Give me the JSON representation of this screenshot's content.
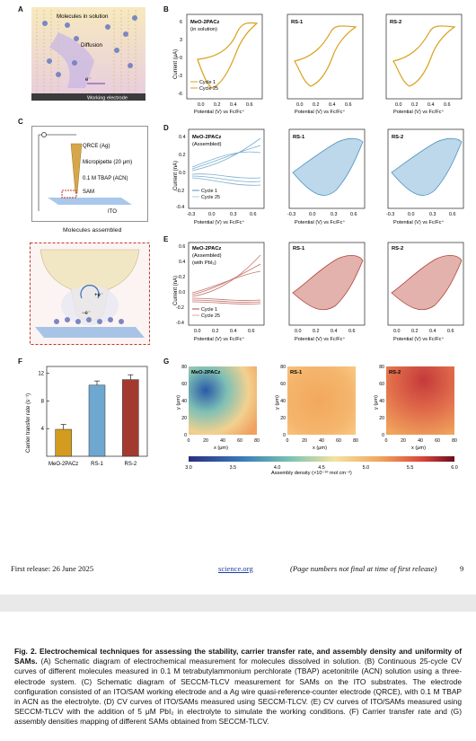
{
  "panels": {
    "A": {
      "label": "A",
      "molecules_text": "Molecules in solution",
      "diffusion_text": "Diffusion",
      "electron_text": "e⁻",
      "electrode_text": "Working electrode"
    },
    "B": {
      "label": "B"
    },
    "C": {
      "label": "C",
      "qrce": "QRCE (Ag)",
      "micropipette": "Micropipette (20 μm)",
      "electrolyte": "0.1 M TBAP (ACN)",
      "sam": "SAM",
      "ito": "ITO",
      "assembled": "Molecules assembled",
      "plus_e": "+e⁻",
      "minus_e": "−e⁻"
    },
    "D": {
      "label": "D"
    },
    "E": {
      "label": "E"
    },
    "F": {
      "label": "F"
    },
    "G": {
      "label": "G"
    }
  },
  "cv_common": {
    "xlabel": "Potential (V) vs Fc/Fc⁺",
    "legend": [
      "Cycle 1",
      "Cycle 25"
    ]
  },
  "cv_B": {
    "ylabel": "Current (μA)",
    "yticks": [
      "6",
      "3",
      "0",
      "-3",
      "-6"
    ],
    "xticks": [
      "0.0",
      "0.2",
      "0.4",
      "0.6"
    ],
    "titles": [
      "MeO-2PACz",
      "RS-1",
      "RS-2"
    ],
    "subtitle": "(in solution)",
    "color": "#d8a11b"
  },
  "cv_D": {
    "ylabel": "Current (nA)",
    "yticks": [
      "0.4",
      "0.2",
      "0.0",
      "-0.2",
      "-0.4"
    ],
    "xticks": [
      "-0.3",
      "0.0",
      "0.3",
      "0.6"
    ],
    "titles": [
      "MeO-2PACz",
      "RS-1",
      "RS-2"
    ],
    "subtitle": "(Assembled)",
    "color": "#4f93bf"
  },
  "cv_E": {
    "ylabel": "Current (nA)",
    "yticks": [
      "0.6",
      "0.4",
      "0.2",
      "0.0",
      "-0.2",
      "-0.4"
    ],
    "xticks": [
      "0.0",
      "0.2",
      "0.4",
      "0.6"
    ],
    "titles": [
      "MeO-2PACz",
      "RS-1",
      "RS-2"
    ],
    "subtitle": "(Assembled)",
    "subtitle2": "(with PbI₂)",
    "color": "#b0473d"
  },
  "chart_data": [
    {
      "type": "bar",
      "panel": "F",
      "categories": [
        "MeO-2PACz",
        "RS-1",
        "RS-2"
      ],
      "values": [
        3.9,
        10.3,
        11.1
      ],
      "errors": [
        0.7,
        0.6,
        0.7
      ],
      "colors": [
        "#d39b1f",
        "#6ea7cf",
        "#a33a2f"
      ],
      "ylabel": "Carrier transfer rate (s⁻¹)",
      "yticks": [
        4,
        8,
        12
      ],
      "ylim": [
        0,
        13
      ]
    },
    {
      "type": "heatmap",
      "panel": "G",
      "maps": [
        "MeO-2PACz",
        "RS-1",
        "RS-2"
      ],
      "xlabel": "x (μm)",
      "ylabel": "y (μm)",
      "ticks": [
        0,
        20,
        40,
        60,
        80
      ],
      "colorbar_label": "Assembly density (×10⁻¹⁰ mol cm⁻²)",
      "colorbar_ticks": [
        "3.0",
        "3.5",
        "4.0",
        "4.5",
        "5.0",
        "5.5",
        "6.0"
      ]
    }
  ],
  "footer": {
    "release": "First release: 26 June 2025",
    "site": "science.org",
    "note": "(Page numbers not final at time of first release)",
    "page": "9"
  },
  "caption": {
    "title": "Fig. 2. Electrochemical techniques for assessing the stability, carrier transfer rate, and assembly density and uniformity of SAMs.",
    "body": " (A) Schematic diagram of electrochemical measurement for molecules dissolved in solution. (B) Continuous 25-cycle CV curves of different molecules measured in 0.1 M tetrabutylammonium perchlorate (TBAP) acetonitrile (ACN) solution using a three-electrode system. (C) Schematic diagram of SECCM-TLCV measurement for SAMs on the ITO substrates. The electrode configuration consisted of an ITO/SAM working electrode and a Ag wire quasi-reference-counter electrode (QRCE), with 0.1 M TBAP in ACN as the electrolyte. (D) CV curves of ITO/SAMs measured using SECCM-TLCV. (E) CV curves of ITO/SAMs measured using SECCM-TLCV with the addition of 5 μM PbI₂ in electrolyte to simulate the working conditions. (F) Carrier transfer rate and (G) assembly densities mapping of different SAMs obtained from SECCM-TLCV."
  }
}
